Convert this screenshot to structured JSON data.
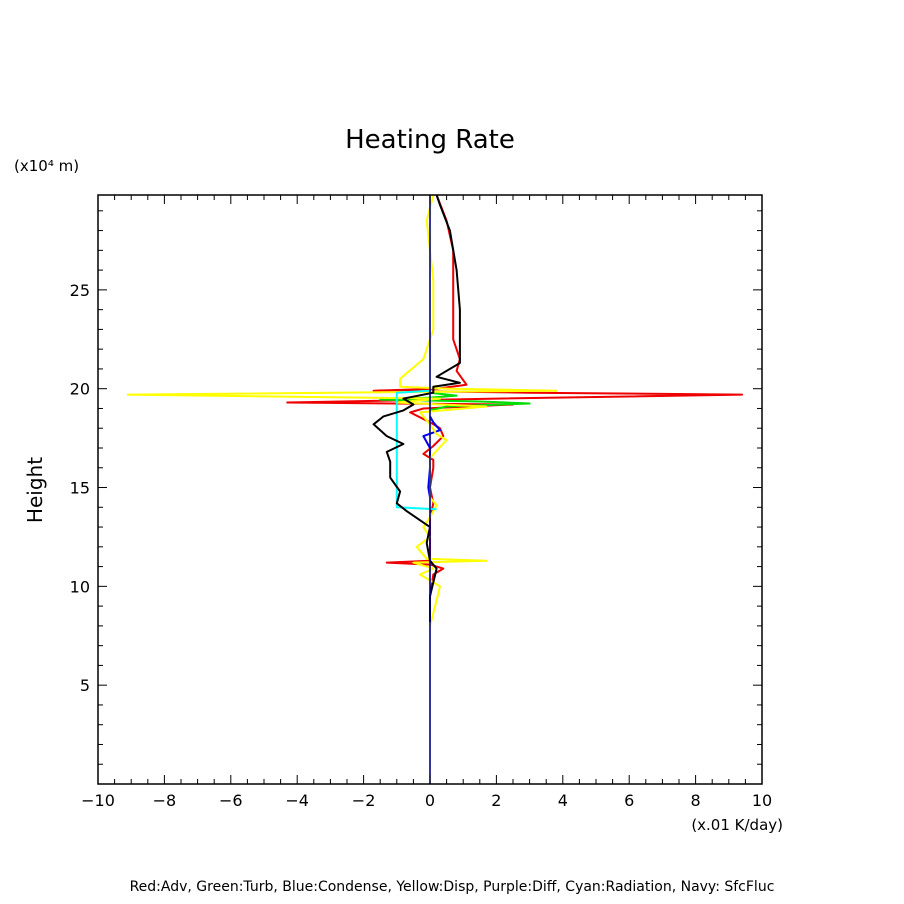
{
  "chart_data": {
    "type": "line",
    "title": "Heating Rate",
    "ylabel": "Height",
    "y_unit": "(x10⁴ m)",
    "x_unit": "(x.01 K/day)",
    "xlim": [
      -10,
      10
    ],
    "ylim": [
      0,
      29.8
    ],
    "x_ticks": [
      -10,
      -8,
      -6,
      -4,
      -2,
      0,
      2,
      4,
      6,
      8,
      10
    ],
    "x_tick_labels": [
      "−10",
      "−8",
      "−6",
      "−4",
      "−2",
      "0",
      "2",
      "4",
      "6",
      "8",
      "10"
    ],
    "y_ticks": [
      5,
      10,
      15,
      20,
      25
    ],
    "y_tick_labels": [
      "5",
      "10",
      "15",
      "20",
      "25"
    ],
    "grid": false,
    "legend_text": "Red:Adv, Green:Turb, Blue:Condense, Yellow:Disp, Purple:Diff, Cyan:Radiation, Navy: SfcFluc",
    "series": [
      {
        "color": "#ee0000",
        "points": [
          [
            0,
            8.5
          ],
          [
            0,
            9.5
          ],
          [
            0.1,
            10.6
          ],
          [
            0.4,
            10.9
          ],
          [
            0,
            11.1
          ],
          [
            -1.3,
            11.2
          ],
          [
            0,
            11.3
          ],
          [
            0,
            12
          ],
          [
            0,
            13.5
          ],
          [
            0.1,
            14.2
          ],
          [
            0,
            15
          ],
          [
            0.1,
            16
          ],
          [
            0.1,
            16.4
          ],
          [
            -0.2,
            16.7
          ],
          [
            0.1,
            17.1
          ],
          [
            0.4,
            17.6
          ],
          [
            0.3,
            18
          ],
          [
            0,
            18.3
          ],
          [
            -0.6,
            18.8
          ],
          [
            -0.2,
            19
          ],
          [
            2.5,
            19.2
          ],
          [
            -4.3,
            19.3
          ],
          [
            2,
            19.5
          ],
          [
            9.4,
            19.7
          ],
          [
            3,
            19.8
          ],
          [
            -1.7,
            19.9
          ],
          [
            0.2,
            20
          ],
          [
            1.1,
            20.2
          ],
          [
            0.8,
            20.9
          ],
          [
            0.9,
            21.5
          ],
          [
            0.7,
            22.5
          ],
          [
            0.7,
            24
          ],
          [
            0.7,
            25.5
          ],
          [
            0.7,
            27
          ],
          [
            0.5,
            28.5
          ],
          [
            0.2,
            29.8
          ]
        ]
      },
      {
        "color": "#00dd00",
        "points": [
          [
            0,
            18.9
          ],
          [
            0.5,
            19.1
          ],
          [
            3,
            19.25
          ],
          [
            1.5,
            19.35
          ],
          [
            -1.5,
            19.45
          ],
          [
            0,
            19.55
          ],
          [
            0.8,
            19.65
          ],
          [
            0,
            19.8
          ]
        ]
      },
      {
        "color": "#0000ee",
        "points": [
          [
            0,
            14.5
          ],
          [
            -0.05,
            15
          ],
          [
            0,
            16
          ],
          [
            0,
            16.5
          ],
          [
            0,
            17
          ],
          [
            -0.2,
            17.6
          ],
          [
            0.3,
            17.9
          ],
          [
            0.1,
            18.3
          ],
          [
            0,
            18.6
          ]
        ]
      },
      {
        "color": "#ffff00",
        "points": [
          [
            0,
            8
          ],
          [
            0.2,
            9.3
          ],
          [
            0.3,
            10
          ],
          [
            -0.3,
            10.6
          ],
          [
            0.1,
            10.9
          ],
          [
            -0.5,
            11.2
          ],
          [
            1.7,
            11.3
          ],
          [
            -0.1,
            11.4
          ],
          [
            -0.4,
            12
          ],
          [
            0,
            12.5
          ],
          [
            -0.2,
            13
          ],
          [
            0,
            13.5
          ],
          [
            0.2,
            14.1
          ],
          [
            0,
            14.5
          ],
          [
            0,
            15.5
          ],
          [
            0,
            16.5
          ],
          [
            0.5,
            17.4
          ],
          [
            0.2,
            17.7
          ],
          [
            0,
            18.2
          ],
          [
            -0.3,
            18.8
          ],
          [
            1.7,
            19.1
          ],
          [
            -1,
            19.3
          ],
          [
            0.3,
            19.5
          ],
          [
            -9.1,
            19.7
          ],
          [
            3.8,
            19.9
          ],
          [
            0.6,
            20
          ],
          [
            -0.9,
            20.1
          ],
          [
            -0.9,
            20.5
          ],
          [
            -0.2,
            21.5
          ],
          [
            0.1,
            23
          ],
          [
            0.1,
            25.5
          ],
          [
            0,
            27
          ],
          [
            -0.1,
            28.5
          ],
          [
            0.1,
            29.8
          ]
        ]
      },
      {
        "color": "#00ffff",
        "points": [
          [
            0.2,
            13.9
          ],
          [
            -1,
            14
          ],
          [
            -1,
            16
          ],
          [
            -1,
            18
          ],
          [
            -1,
            19.8
          ],
          [
            0,
            19.9
          ]
        ]
      },
      {
        "color": "#000000",
        "points": [
          [
            0,
            8.2
          ],
          [
            0,
            9.5
          ],
          [
            0.2,
            10.9
          ],
          [
            0,
            11.3
          ],
          [
            -0.1,
            12.2
          ],
          [
            0,
            13
          ],
          [
            -0.7,
            13.8
          ],
          [
            -1,
            14.2
          ],
          [
            -0.9,
            14.8
          ],
          [
            -1.2,
            15.5
          ],
          [
            -1.2,
            16.3
          ],
          [
            -1.3,
            16.8
          ],
          [
            -0.8,
            17.2
          ],
          [
            -1.3,
            17.6
          ],
          [
            -1.7,
            18.2
          ],
          [
            -1.4,
            18.6
          ],
          [
            -0.8,
            18.9
          ],
          [
            -0.5,
            19.2
          ],
          [
            -0.8,
            19.5
          ],
          [
            0.1,
            19.8
          ],
          [
            0.1,
            20.1
          ],
          [
            0.9,
            20.3
          ],
          [
            0.2,
            20.6
          ],
          [
            0.9,
            21.3
          ],
          [
            0.9,
            22.5
          ],
          [
            0.9,
            24
          ],
          [
            0.8,
            26
          ],
          [
            0.6,
            28
          ],
          [
            0.3,
            29.3
          ],
          [
            0.2,
            29.8
          ]
        ]
      },
      {
        "color": "#000080",
        "points": [
          [
            0,
            0
          ],
          [
            0,
            29.8
          ]
        ]
      }
    ]
  }
}
